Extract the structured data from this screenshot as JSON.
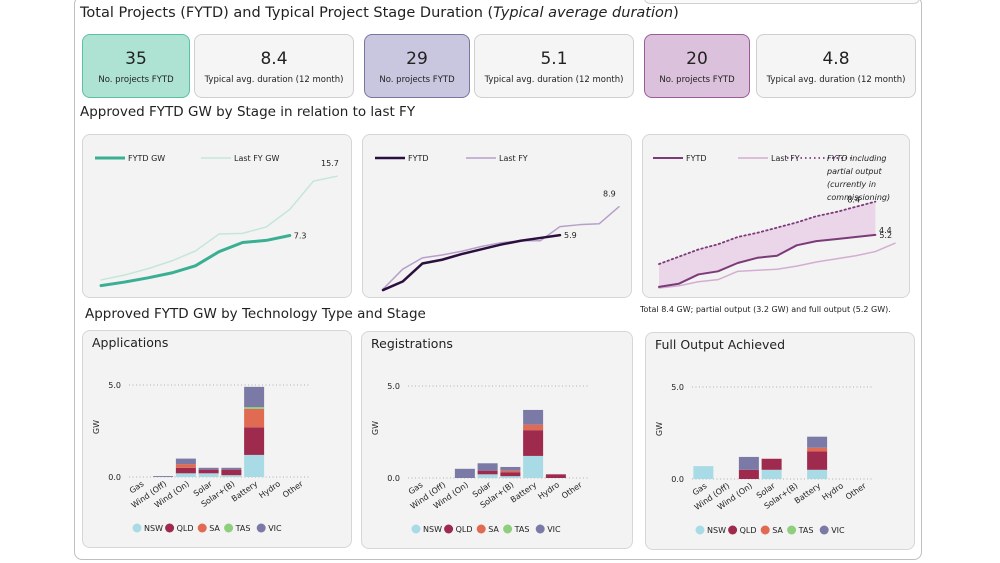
{
  "header": {
    "title_main": "Total Projects (FYTD) and Typical Project Stage Duration (",
    "title_italic": "Typical average duration",
    "title_end": ")"
  },
  "kpis": [
    {
      "value": "35",
      "label": "No. projects FYTD",
      "bg": "#aee3d3",
      "border": "#5cbfa3"
    },
    {
      "value": "8.4",
      "label": "Typical avg. duration (12 month)",
      "bg": "#f5f5f5",
      "border": "#cfcfcf"
    },
    {
      "value": "29",
      "label": "No. projects FYTD",
      "bg": "#c9c6df",
      "border": "#7a759f"
    },
    {
      "value": "5.1",
      "label": "Typical avg. duration (12 month)",
      "bg": "#f5f5f5",
      "border": "#cfcfcf"
    },
    {
      "value": "20",
      "label": "No. projects FYTD",
      "bg": "#dcc1dc",
      "border": "#9c5a97"
    },
    {
      "value": "4.8",
      "label": "Typical avg. duration (12 month)",
      "bg": "#f5f5f5",
      "border": "#cfcfcf"
    }
  ],
  "section_lines_title": "Approved  FYTD GW by Stage in relation to last FY",
  "section_bars_title": "Approved  FYTD GW by Technology Type and Stage",
  "footnote": "Total 8.4 GW; partial output (3.2 GW) and full output (5.2 GW).",
  "colors": {
    "teal": "#3aaf94",
    "teal_light": "#c5e6db",
    "navy": "#2b0f3f",
    "lavender": "#b89fc9",
    "purple": "#7b3a78",
    "purple_light": "#d3aed2",
    "purple_fill": "#e7cde6",
    "NSW": "#a9dbe6",
    "QLD": "#9e2a4e",
    "SA": "#e06a52",
    "TAS": "#8fce7c",
    "VIC": "#7b7aa6"
  },
  "chart_data": [
    {
      "type": "line",
      "legend": [
        "FYTD GW",
        "Last FY GW"
      ],
      "ylim": [
        0,
        17
      ],
      "series": [
        {
          "name": "FYTD GW",
          "color": "#3aaf94",
          "width": 3,
          "values": [
            0.2,
            0.7,
            1.3,
            2.0,
            3.0,
            5.0,
            6.3,
            6.6,
            7.3
          ],
          "end_label": "7.3"
        },
        {
          "name": "Last FY GW",
          "color": "#c5e6db",
          "width": 1.5,
          "values": [
            1.0,
            1.7,
            2.6,
            3.7,
            5.1,
            7.5,
            7.6,
            8.5,
            11.0,
            15.0,
            15.7
          ],
          "end_label": "15.7"
        }
      ]
    },
    {
      "type": "line",
      "legend": [
        "FYTD",
        "Last FY"
      ],
      "ylim": [
        0,
        9.5
      ],
      "series": [
        {
          "name": "FYTD",
          "color": "#2b0f3f",
          "width": 2.5,
          "values": [
            0.1,
            1.0,
            2.9,
            3.3,
            3.9,
            4.4,
            4.9,
            5.3,
            5.6,
            5.9
          ],
          "end_label": "5.9"
        },
        {
          "name": "Last FY",
          "color": "#b89fc9",
          "width": 1.5,
          "values": [
            0.2,
            2.3,
            3.5,
            3.8,
            4.2,
            4.7,
            5.1,
            5.3,
            5.3,
            6.8,
            7.0,
            7.1,
            8.9
          ],
          "end_label": "8.9"
        }
      ]
    },
    {
      "type": "area",
      "legend": [
        "FYTD",
        "Last FY",
        "FYTD including partial output (currently in commissioning)"
      ],
      "legend_note_lines": [
        "FYTD  including",
        "partial output",
        "(currently in",
        "commissioning)"
      ],
      "ylim": [
        0,
        10
      ],
      "series": [
        {
          "name": "FYTD",
          "color": "#7b3a78",
          "width": 2,
          "values": [
            0.2,
            0.5,
            1.4,
            1.7,
            2.5,
            3.0,
            3.2,
            4.2,
            4.6,
            4.8,
            5.0,
            5.2
          ],
          "end_label": "5.2"
        },
        {
          "name": "Last FY",
          "color": "#d3aed2",
          "width": 1.5,
          "values": [
            0.1,
            0.3,
            0.7,
            0.9,
            1.7,
            1.8,
            1.9,
            2.2,
            2.6,
            2.9,
            3.2,
            3.6,
            4.4
          ],
          "end_label": "4.4"
        },
        {
          "name": "FYTD including partial output (currently in commissioning)",
          "color": "#7b3a78",
          "dash": true,
          "values": [
            2.4,
            3.1,
            3.8,
            4.3,
            5.0,
            5.4,
            5.9,
            6.4,
            7.0,
            7.4,
            7.9,
            8.4
          ],
          "end_label": "8.4"
        }
      ]
    },
    {
      "type": "bar",
      "stacked": true,
      "title": "Applications",
      "ylabel": "GW",
      "ylim": [
        0,
        5.0
      ],
      "yticks": [
        "0.0",
        "5.0"
      ],
      "categories": [
        "Gas",
        "Wind (Off)",
        "Wind (On)",
        "Solar",
        "Solar+(B)",
        "Battery",
        "Hydro",
        "Other"
      ],
      "legend": [
        "NSW",
        "QLD",
        "SA",
        "TAS",
        "VIC"
      ],
      "series": [
        {
          "name": "NSW",
          "values": [
            0,
            0,
            0.2,
            0.2,
            0.1,
            1.2,
            0,
            0
          ]
        },
        {
          "name": "QLD",
          "values": [
            0,
            0,
            0.3,
            0.2,
            0.3,
            1.5,
            0,
            0
          ]
        },
        {
          "name": "SA",
          "values": [
            0,
            0,
            0.2,
            0,
            0,
            1.0,
            0,
            0
          ]
        },
        {
          "name": "TAS",
          "values": [
            0,
            0,
            0,
            0,
            0,
            0.1,
            0,
            0
          ]
        },
        {
          "name": "VIC",
          "values": [
            0,
            0.05,
            0.3,
            0.1,
            0.1,
            1.1,
            0,
            0
          ]
        }
      ]
    },
    {
      "type": "bar",
      "stacked": true,
      "title": "Registrations",
      "ylabel": "GW",
      "ylim": [
        0,
        5.0
      ],
      "yticks": [
        "0.0",
        "5.0"
      ],
      "categories": [
        "Gas",
        "Wind (Off)",
        "Wind (On)",
        "Solar",
        "Solar+(B)",
        "Battery",
        "Hydro",
        "Other"
      ],
      "legend": [
        "NSW",
        "QLD",
        "SA",
        "TAS",
        "VIC"
      ],
      "series": [
        {
          "name": "NSW",
          "values": [
            0,
            0,
            0,
            0.2,
            0.1,
            1.2,
            0,
            0
          ]
        },
        {
          "name": "QLD",
          "values": [
            0,
            0,
            0,
            0.2,
            0.2,
            1.4,
            0.2,
            0
          ]
        },
        {
          "name": "SA",
          "values": [
            0,
            0,
            0,
            0,
            0.1,
            0.3,
            0,
            0
          ]
        },
        {
          "name": "TAS",
          "values": [
            0,
            0,
            0,
            0,
            0,
            0,
            0,
            0
          ]
        },
        {
          "name": "VIC",
          "values": [
            0,
            0,
            0.5,
            0.4,
            0.2,
            0.8,
            0,
            0
          ]
        }
      ]
    },
    {
      "type": "bar",
      "stacked": true,
      "title": "Full Output Achieved",
      "ylabel": "GW",
      "ylim": [
        0,
        5.0
      ],
      "yticks": [
        "0.0",
        "5.0"
      ],
      "categories": [
        "Gas",
        "Wind (Off)",
        "Wind (On)",
        "Solar",
        "Solar+(B)",
        "Battery",
        "Hydro",
        "Other"
      ],
      "legend": [
        "NSW",
        "QLD",
        "SA",
        "TAS",
        "VIC"
      ],
      "series": [
        {
          "name": "NSW",
          "values": [
            0.7,
            0,
            0,
            0.5,
            0,
            0.5,
            0,
            0
          ]
        },
        {
          "name": "QLD",
          "values": [
            0,
            0,
            0.5,
            0.6,
            0,
            1.0,
            0,
            0
          ]
        },
        {
          "name": "SA",
          "values": [
            0,
            0,
            0,
            0,
            0,
            0.2,
            0,
            0
          ]
        },
        {
          "name": "TAS",
          "values": [
            0,
            0,
            0,
            0,
            0,
            0,
            0,
            0
          ]
        },
        {
          "name": "VIC",
          "values": [
            0,
            0,
            0.7,
            0,
            0,
            0.6,
            0,
            0
          ]
        }
      ]
    }
  ]
}
